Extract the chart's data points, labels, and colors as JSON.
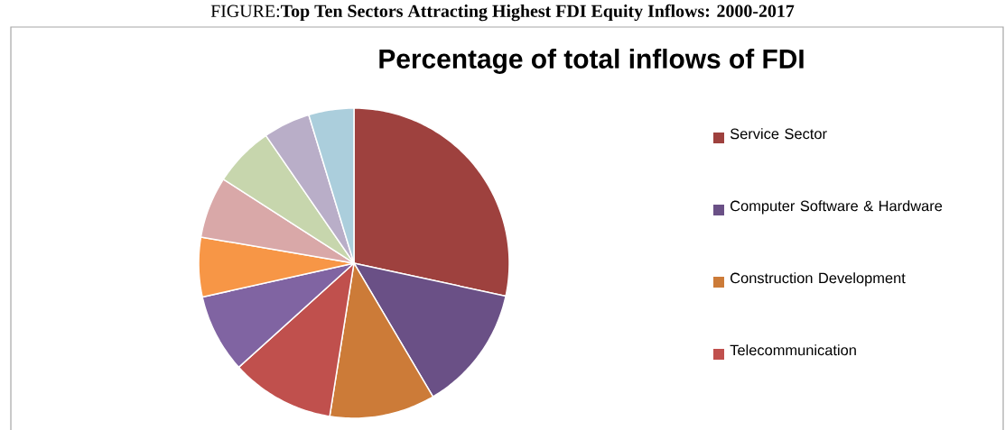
{
  "chart_data": {
    "type": "pie",
    "title": "Percentage of total inflows of FDI",
    "annotations": [
      "FIGURE:**Top Ten Sectors Attracting Highest FDI Equity Inflows: 2000-2017**"
    ],
    "categories": [
      "Service Sector",
      "Computer Software & Hardware",
      "Construction Development",
      "Telecommunication",
      null,
      null,
      null,
      null,
      null,
      null
    ],
    "values": [
      28.4,
      13.1,
      11.0,
      10.8,
      8.2,
      6.2,
      6.4,
      6.3,
      4.9,
      4.7
    ],
    "colors": [
      "#9e413e",
      "#6a5086",
      "#cc7b38",
      "#c0504d",
      "#8064a2",
      "#f79646",
      "#d9a8a8",
      "#c7d6ad",
      "#b9aec8",
      "#abcedc"
    ],
    "legend": "right"
  }
}
